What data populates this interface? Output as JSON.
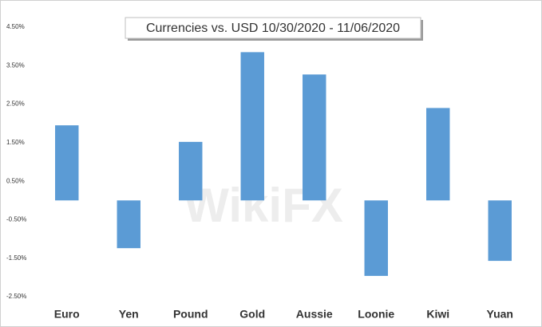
{
  "chart_data": {
    "type": "bar",
    "title": "Currencies vs. USD 10/30/2020 - 11/06/2020",
    "watermark": "WikiFX",
    "categories": [
      "Euro",
      "Yen",
      "Pound",
      "Gold",
      "Aussie",
      "Loonie",
      "Kiwi",
      "Yuan"
    ],
    "values": [
      1.95,
      -1.24,
      1.52,
      3.85,
      3.27,
      -1.96,
      2.4,
      -1.57
    ],
    "color": "#5b9bd5",
    "ylim": [
      -2.5,
      4.5
    ],
    "yticks": [
      {
        "value": -2.5,
        "label": "-2.50%"
      },
      {
        "value": -1.5,
        "label": "-1.50%"
      },
      {
        "value": -0.5,
        "label": "-0.50%"
      },
      {
        "value": 0.5,
        "label": "0.50%"
      },
      {
        "value": 1.5,
        "label": "1.50%"
      },
      {
        "value": 2.5,
        "label": "2.50%"
      },
      {
        "value": 3.5,
        "label": "3.50%"
      },
      {
        "value": 4.5,
        "label": "4.50%"
      }
    ],
    "grid": false
  }
}
